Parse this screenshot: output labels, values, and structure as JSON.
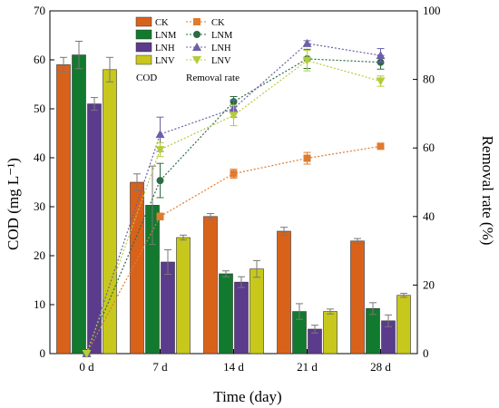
{
  "chart_data": {
    "type": "bar+line",
    "categories": [
      "0 d",
      "7 d",
      "14 d",
      "21 d",
      "28 d"
    ],
    "xlabel": "Time (day)",
    "ylabel_left": "COD (mg L⁻¹)",
    "ylabel_right": "Removal rate (%)",
    "ylim_left": [
      0,
      70
    ],
    "yticks_left": [
      0,
      10,
      20,
      30,
      40,
      50,
      60,
      70
    ],
    "ylim_right": [
      0,
      100
    ],
    "yticks_right": [
      0,
      20,
      40,
      60,
      80,
      100
    ],
    "legend_cod_label": "COD",
    "legend_rate_label": "Removal rate",
    "legend_position": "top-left",
    "bar_series": [
      {
        "name": "CK",
        "color": "#d9621b",
        "values": [
          59,
          35,
          28,
          25,
          23
        ],
        "errors": [
          1.5,
          1.7,
          0.6,
          0.8,
          0.5
        ]
      },
      {
        "name": "LNM",
        "color": "#127a2f",
        "values": [
          61,
          30.3,
          16.3,
          8.6,
          9.2
        ],
        "errors": [
          2.8,
          8,
          0.6,
          1.6,
          1.2
        ]
      },
      {
        "name": "LNH",
        "color": "#5b3b8c",
        "values": [
          51,
          18.7,
          14.6,
          5,
          6.7
        ],
        "errors": [
          1.3,
          2.5,
          1.1,
          0.8,
          1.2
        ]
      },
      {
        "name": "LNV",
        "color": "#c8c81c",
        "values": [
          58,
          23.7,
          17.3,
          8.6,
          11.9
        ],
        "errors": [
          2.5,
          0.5,
          1.7,
          0.5,
          0.4
        ]
      }
    ],
    "line_series": [
      {
        "name": "CK",
        "color": "#e07b2e",
        "marker": "square",
        "values": [
          0,
          40,
          52.5,
          57,
          60.5
        ],
        "errors": [
          0,
          1,
          1.3,
          1.7,
          0.5
        ]
      },
      {
        "name": "LNM",
        "color": "#2d6b45",
        "marker": "circle",
        "values": [
          0,
          50.5,
          73.5,
          86,
          85
        ],
        "errors": [
          0,
          5,
          1.5,
          2.8,
          2
        ]
      },
      {
        "name": "LNH",
        "color": "#6b60a8",
        "marker": "triangle",
        "values": [
          0,
          64,
          71.5,
          90.5,
          87
        ],
        "errors": [
          0,
          5,
          2.5,
          0.8,
          2
        ]
      },
      {
        "name": "LNV",
        "color": "#b4cc3a",
        "marker": "tri-down",
        "values": [
          0,
          59.5,
          69.5,
          85.5,
          79.5
        ],
        "errors": [
          0,
          2,
          3,
          3,
          1.5
        ]
      }
    ]
  }
}
